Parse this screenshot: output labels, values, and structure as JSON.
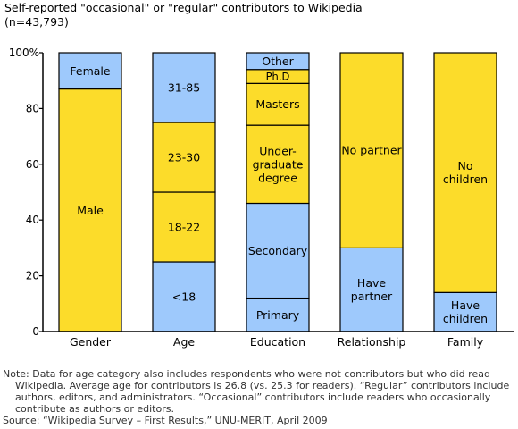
{
  "title": "Self-reported \"occasional\" or \"regular\" contributors to Wikipedia (n=43,793)",
  "colors": {
    "yellow": "#fcdc2a",
    "blue": "#9ec9fc",
    "edge": "#000000"
  },
  "chart_data": {
    "type": "bar",
    "stacked": true,
    "title": "Self-reported \"occasional\" or \"regular\" contributors to Wikipedia (n=43,793)",
    "categories": [
      "Gender",
      "Age",
      "Education",
      "Relationship",
      "Family"
    ],
    "ylim": [
      0,
      100
    ],
    "yticks": [
      0,
      20,
      40,
      60,
      80,
      100
    ],
    "ytick_labels": [
      "0",
      "20",
      "40",
      "60",
      "80",
      "100%"
    ],
    "grid": false,
    "stacks": [
      {
        "category": "Gender",
        "segments": [
          {
            "label": "Male",
            "value": 87,
            "color": "yellow"
          },
          {
            "label": "Female",
            "value": 13,
            "color": "blue"
          }
        ]
      },
      {
        "category": "Age",
        "segments": [
          {
            "label": "<18",
            "value": 25,
            "color": "blue"
          },
          {
            "label": "18-22",
            "value": 25,
            "color": "yellow"
          },
          {
            "label": "23-30",
            "value": 25,
            "color": "yellow"
          },
          {
            "label": "31-85",
            "value": 25,
            "color": "blue"
          }
        ]
      },
      {
        "category": "Education",
        "segments": [
          {
            "label": "Primary",
            "value": 12,
            "color": "blue"
          },
          {
            "label": "Secondary",
            "value": 34,
            "color": "blue"
          },
          {
            "label": "Under-\ngraduate\ndegree",
            "value": 28,
            "color": "yellow"
          },
          {
            "label": "Masters",
            "value": 15,
            "color": "yellow"
          },
          {
            "label": "Ph.D",
            "value": 5,
            "color": "yellow"
          },
          {
            "label": "Other",
            "value": 6,
            "color": "blue"
          }
        ]
      },
      {
        "category": "Relationship",
        "segments": [
          {
            "label": "Have\npartner",
            "value": 30,
            "color": "blue"
          },
          {
            "label": "No partner",
            "value": 70,
            "color": "yellow"
          }
        ]
      },
      {
        "category": "Family",
        "segments": [
          {
            "label": "Have\nchildren",
            "value": 14,
            "color": "blue"
          },
          {
            "label": "No\nchildren",
            "value": 86,
            "color": "yellow"
          }
        ]
      }
    ]
  },
  "notes": {
    "note_line1": "Note: Data for age category also includes respondents who were not contributors but who did read",
    "note_line2": "Wikipedia. Average age for contributors is 26.8 (vs. 25.3 for readers). “Regular” contributors include",
    "note_line3": "authors, editors, and administrators. “Occasional” contributors include readers who occasionally",
    "note_line4": "contribute as authors or editors.",
    "source": "Source: “Wikipedia Survey – First Results,” UNU-MERIT, April 2009"
  }
}
